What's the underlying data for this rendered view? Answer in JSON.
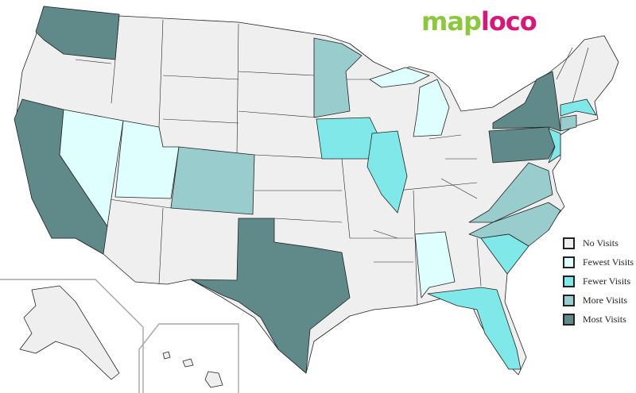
{
  "logo": {
    "part1": "map",
    "part2": "loco"
  },
  "colors": {
    "none": "#efefef",
    "fewest": "#dfffff",
    "fewer": "#80e8e8",
    "more": "#99cccc",
    "most": "#608a8a",
    "border": "#222222"
  },
  "legend": [
    {
      "key": "none",
      "label": "No Visits"
    },
    {
      "key": "fewest",
      "label": "Fewest Visits"
    },
    {
      "key": "fewer",
      "label": "Fewer Visits"
    },
    {
      "key": "more",
      "label": "More Visits"
    },
    {
      "key": "most",
      "label": "Most Visits"
    }
  ],
  "states": {
    "WA": "most",
    "CA": "most",
    "TX": "most",
    "NY": "most",
    "PA": "most",
    "NV": "fewest",
    "UT": "fewest",
    "MI": "fewest",
    "AL": "fewest",
    "IA": "fewer",
    "IL": "fewer",
    "FL": "fewer",
    "SC": "fewer",
    "NJ": "fewer",
    "MA": "fewer",
    "CO": "more",
    "MN": "more",
    "VA": "more",
    "NC": "more",
    "CT": "more"
  }
}
